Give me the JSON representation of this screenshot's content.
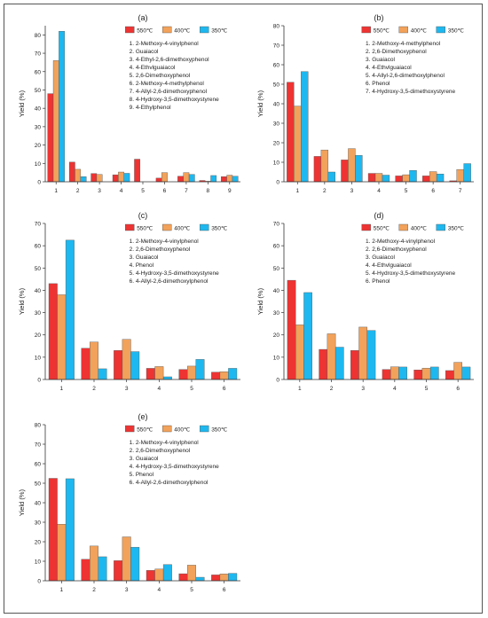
{
  "legend_labels": [
    "550℃",
    "400℃",
    "350℃"
  ],
  "colors": {
    "550": "#ee3333",
    "400": "#f2a25a",
    "350": "#1db8f0",
    "axis": "#333333"
  },
  "chart_data": [
    {
      "panel": "(a)",
      "type": "bar",
      "ylabel": "Yield (%)",
      "ylim": [
        0,
        85
      ],
      "yticks": [
        0,
        10,
        20,
        30,
        40,
        50,
        60,
        70,
        80
      ],
      "categories": [
        "1",
        "2",
        "3",
        "4",
        "5",
        "6",
        "7",
        "8",
        "9"
      ],
      "compounds": [
        "1. 2-Methoxy-4-vinylphenol",
        "2. Guaiacol",
        "3. 4-Ethyl-2,6-dimethoxyphenol",
        "4. 4-Ethvlguaiacol",
        "5. 2,6-Dimethoxyphenol",
        "6. 2-Methoxy-4-methylphenol",
        "7. 4-Allyl-2,6-dimethoxyphenol",
        "8. 4-Hydroxy-3,5-dimethoxystyrene",
        "9. 4-Ethylphenol"
      ],
      "series": [
        {
          "name": "550℃",
          "values": [
            48,
            10.7,
            4.5,
            3.8,
            12.3,
            2,
            3,
            0.7,
            2.8
          ]
        },
        {
          "name": "400℃",
          "values": [
            66,
            6.8,
            4,
            5.3,
            0,
            5,
            5,
            0.3,
            3.6
          ]
        },
        {
          "name": "350℃",
          "values": [
            82,
            2.8,
            0,
            4.6,
            0,
            0,
            4,
            3.4,
            3
          ]
        }
      ]
    },
    {
      "panel": "(b)",
      "type": "bar",
      "ylabel": "Yield (%)",
      "ylim": [
        0,
        80
      ],
      "yticks": [
        0,
        10,
        20,
        30,
        40,
        50,
        60,
        70,
        80
      ],
      "categories": [
        "1",
        "2",
        "3",
        "4",
        "5",
        "6",
        "7"
      ],
      "compounds": [
        "1. 2-Methoxy-4-methylphenol",
        "2. 2,6-Dimethoxyphenol",
        "3. Guaiacol",
        "4. 4-Ethvlguaiacol",
        "5. 4-Allyl-2,6-dimethoxylphenol",
        "6. Phenol",
        "7. 4-Hydroxy-3,5-dimethoxystyrene"
      ],
      "series": [
        {
          "name": "550℃",
          "values": [
            51,
            13,
            11.2,
            4.3,
            3,
            3,
            0.5
          ]
        },
        {
          "name": "400℃",
          "values": [
            38.8,
            16.3,
            17,
            4.3,
            3.6,
            5.2,
            6.3
          ]
        },
        {
          "name": "350℃",
          "values": [
            56.5,
            5,
            13.5,
            3.4,
            5.8,
            4,
            9.3
          ]
        }
      ]
    },
    {
      "panel": "(c)",
      "type": "bar",
      "ylabel": "Yield (%)",
      "ylim": [
        0,
        70
      ],
      "yticks": [
        0,
        10,
        20,
        30,
        40,
        50,
        60,
        70
      ],
      "categories": [
        "1",
        "2",
        "3",
        "4",
        "5",
        "6"
      ],
      "compounds": [
        "1. 2-Methoxy-4-vinylphenol",
        "2. 2,6-Dimethoxyphenol",
        "3. Guaiacol",
        "4. Phenol",
        "5. 4-Hydroxy-3,5-dimethoxystyrene",
        "6. 4-Allyl-2,6-dimethoxylphenol"
      ],
      "series": [
        {
          "name": "550℃",
          "values": [
            43,
            14,
            13,
            5,
            4.5,
            3.3
          ]
        },
        {
          "name": "400℃",
          "values": [
            38,
            16.8,
            18,
            5.8,
            6,
            3.5
          ]
        },
        {
          "name": "350℃",
          "values": [
            62.5,
            4.8,
            12.5,
            1.2,
            9,
            5
          ]
        }
      ]
    },
    {
      "panel": "(d)",
      "type": "bar",
      "ylabel": "Yield (%)",
      "ylim": [
        0,
        70
      ],
      "yticks": [
        0,
        10,
        20,
        30,
        40,
        50,
        60,
        70
      ],
      "categories": [
        "1",
        "2",
        "3",
        "4",
        "5",
        "6"
      ],
      "compounds": [
        "1. 2-Methoxy-4-vinylphenol",
        "2. 2,6-Dimethoxyphenol",
        "3. Guaiacol",
        "4. 4-Ethvlguaiacol",
        "5. 4-Hydroxy-3,5-dimethoxystyrene",
        "6. Phenol"
      ],
      "series": [
        {
          "name": "550℃",
          "values": [
            44.5,
            13.5,
            13,
            4.5,
            4.3,
            4
          ]
        },
        {
          "name": "400℃",
          "values": [
            24.5,
            20.5,
            23.5,
            5.7,
            5.1,
            7.7
          ]
        },
        {
          "name": "350℃",
          "values": [
            39,
            14.5,
            22,
            5.6,
            5.6,
            5.6
          ]
        }
      ]
    },
    {
      "panel": "(e)",
      "type": "bar",
      "ylabel": "Yield (%)",
      "ylim": [
        0,
        80
      ],
      "yticks": [
        0,
        10,
        20,
        30,
        40,
        50,
        60,
        70,
        80
      ],
      "categories": [
        "1",
        "2",
        "3",
        "4",
        "5",
        "6"
      ],
      "compounds": [
        "1. 2-Methoxy-4-vinylphenol",
        "2. 2,6-Dimethoxyphenol",
        "3. Guaiacol",
        "4. 4-Hydroxy-3,5-dimethoxystyrene",
        "5. Phenol",
        "6. 4-Allyl-2,6-dimethoxylphenol"
      ],
      "series": [
        {
          "name": "550℃",
          "values": [
            52.5,
            11,
            10.3,
            5.3,
            3.6,
            3
          ]
        },
        {
          "name": "400℃",
          "values": [
            29,
            17.8,
            22.5,
            6,
            8,
            3.5
          ]
        },
        {
          "name": "350℃",
          "values": [
            52.3,
            12.3,
            17.2,
            8.3,
            1.8,
            3.8
          ]
        }
      ]
    }
  ]
}
